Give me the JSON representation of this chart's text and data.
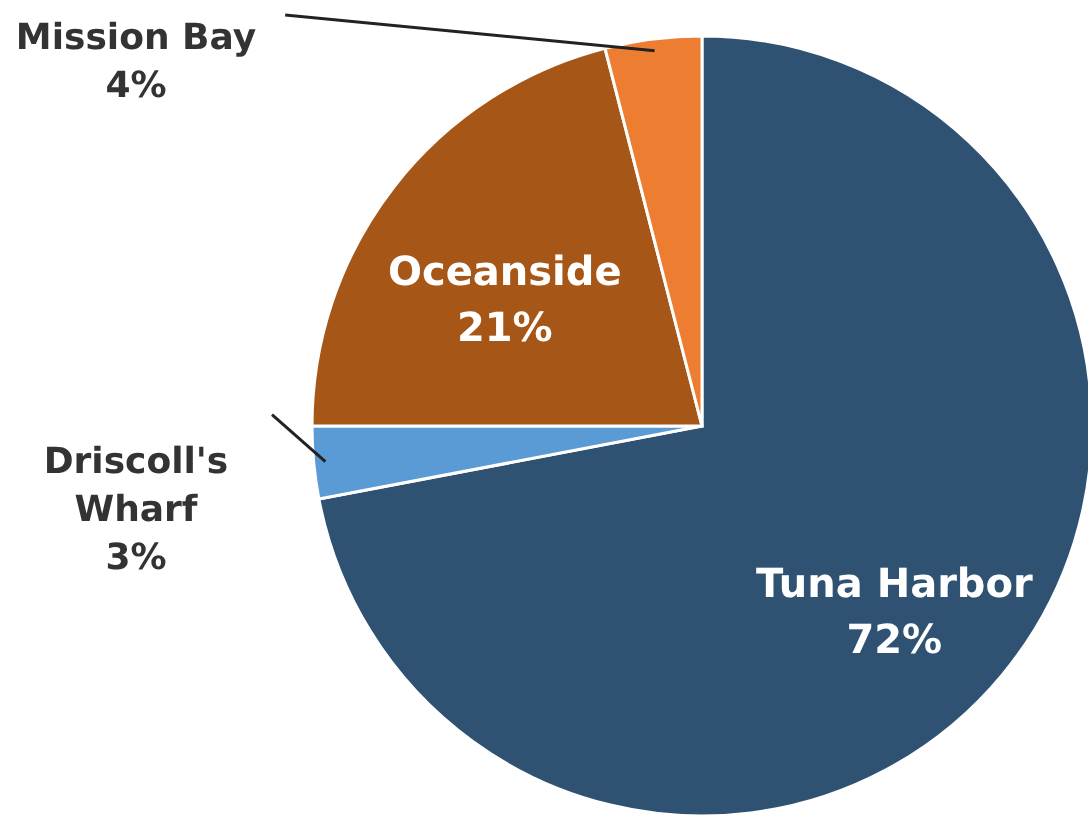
{
  "chart_data": {
    "type": "pie",
    "categories": [
      "Tuna Harbor",
      "Driscoll's Wharf",
      "Oceanside",
      "Mission Bay"
    ],
    "values": [
      72,
      3,
      21,
      4
    ],
    "colors": [
      "#2f5273",
      "#5b9bd5",
      "#a65718",
      "#ed7d31"
    ],
    "value_labels": [
      "72%",
      "3%",
      "21%",
      "4%"
    ]
  }
}
